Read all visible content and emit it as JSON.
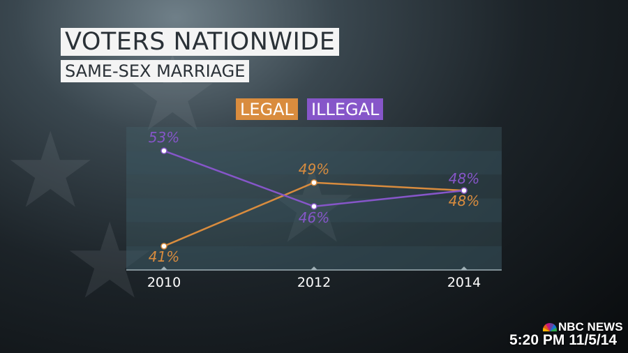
{
  "header": {
    "title": "VOTERS NATIONWIDE",
    "subtitle": "SAME-SEX MARRIAGE"
  },
  "colors": {
    "legal": "#d98c3e",
    "illegal": "#8656c9"
  },
  "chart_data": {
    "type": "line",
    "title": "VOTERS NATIONWIDE",
    "subtitle": "SAME-SEX MARRIAGE",
    "x": [
      "2010",
      "2012",
      "2014"
    ],
    "series": [
      {
        "name": "LEGAL",
        "values": [
          41,
          49,
          48
        ],
        "labels": [
          "41%",
          "49%",
          "48%"
        ],
        "color": "#d98c3e"
      },
      {
        "name": "ILLEGAL",
        "values": [
          53,
          46,
          48
        ],
        "labels": [
          "53%",
          "46%",
          "48%"
        ],
        "color": "#8656c9"
      }
    ],
    "ylim": [
      38,
      56
    ],
    "grid": "horizontal bands",
    "legend": "top-center"
  },
  "footer": {
    "network": "NBC NEWS",
    "timestamp": "5:20 PM 11/5/14"
  }
}
